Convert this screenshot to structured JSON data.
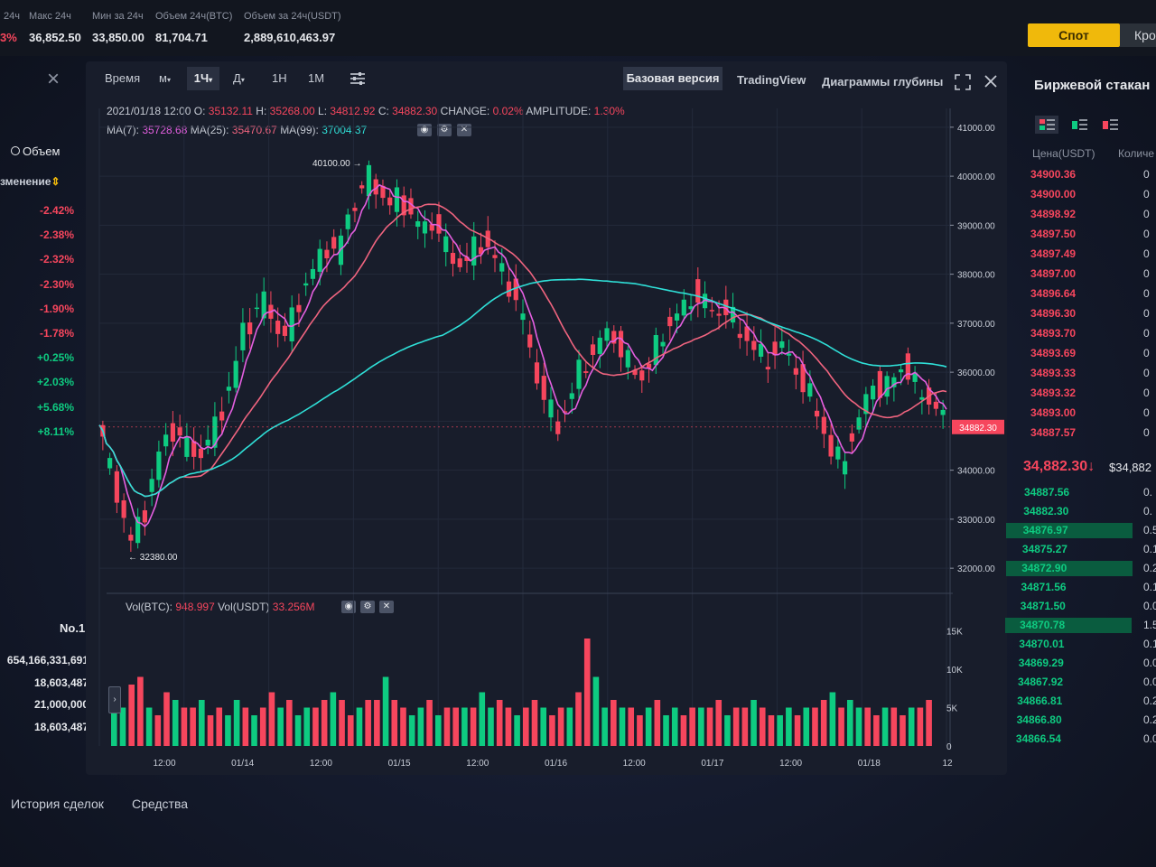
{
  "top_stats": {
    "change_partial": "3%",
    "label_change_partial": "24ч",
    "high_label": "Макс 24ч",
    "high_value": "36,852.50",
    "low_label": "Мин за 24ч",
    "low_value": "33,850.00",
    "vol_btc_label": "Объем 24ч(BTC)",
    "vol_btc_value": "81,704.71",
    "vol_usdt_label": "Объем за 24ч(USDT)",
    "vol_usdt_value": "2,889,610,463.97",
    "spot_button": "Спот",
    "cross_button": "Кро"
  },
  "left_panel": {
    "close_icon": "×",
    "volume_radio": "Объем",
    "change_header": "зменение",
    "changes": [
      {
        "value": "-2.42%",
        "sign": "neg"
      },
      {
        "value": "-2.38%",
        "sign": "neg"
      },
      {
        "value": "-2.32%",
        "sign": "neg"
      },
      {
        "value": "-2.30%",
        "sign": "neg"
      },
      {
        "value": "-1.90%",
        "sign": "neg"
      },
      {
        "value": "-1.78%",
        "sign": "neg"
      },
      {
        "value": "+0.25%",
        "sign": "pos"
      },
      {
        "value": "+2.03%",
        "sign": "pos"
      },
      {
        "value": "+5.68%",
        "sign": "pos"
      },
      {
        "value": "+8.11%",
        "sign": "pos"
      }
    ],
    "rank": "No.1",
    "stats": [
      "654,166,331,691",
      "18,603,487",
      "21,000,000",
      "18,603,487"
    ]
  },
  "toolbar": {
    "time": "Время",
    "minutes": "м",
    "hour": "1Ч",
    "day": "Д",
    "week": "1Н",
    "month": "1М",
    "basic_view": "Базовая версия",
    "tradingview": "TradingView",
    "depth_chart": "Диаграммы глубины"
  },
  "ohlc": {
    "datetime": "2021/01/18 12:00",
    "o_label": "O:",
    "o": "35132.11",
    "h_label": "H:",
    "h": "35268.00",
    "l_label": "L:",
    "l": "34812.92",
    "c_label": "C:",
    "c": "34882.30",
    "change_label": "CHANGE:",
    "change": "0.02%",
    "amp_label": "AMPLITUDE:",
    "amp": "1.30%",
    "ma7_label": "MA(7):",
    "ma7": "35728.68",
    "ma25_label": "MA(25):",
    "ma25": "35470.67",
    "ma99_label": "MA(99):",
    "ma99": "37004.37",
    "vol_btc_label": "Vol(BTC):",
    "vol_btc": "948.997",
    "vol_usdt_label": "Vol(USDT)",
    "vol_usdt": "33.256M"
  },
  "chart_data": {
    "type": "candlestick",
    "price_ticks": [
      "41000.00",
      "40000.00",
      "39000.00",
      "38000.00",
      "37000.00",
      "36000.00",
      "34000.00",
      "33000.00",
      "32000.00"
    ],
    "volume_ticks": [
      "15K",
      "10K",
      "5K",
      "0"
    ],
    "x_ticks": [
      "12:00",
      "01/14",
      "12:00",
      "01/15",
      "12:00",
      "01/16",
      "12:00",
      "01/17",
      "12:00",
      "01/18",
      "12"
    ],
    "annotations": {
      "high": "40100.00",
      "low": "32380.00"
    },
    "current_price_tag": "34882.30",
    "ylim": [
      31800,
      41200
    ],
    "close_points": [
      [
        0,
        34800
      ],
      [
        3,
        34100
      ],
      [
        6,
        33300
      ],
      [
        8,
        32700
      ],
      [
        9,
        32500
      ],
      [
        11,
        32900
      ],
      [
        14,
        33400
      ],
      [
        17,
        34300
      ],
      [
        20,
        34900
      ],
      [
        23,
        34600
      ],
      [
        26,
        34500
      ],
      [
        29,
        34300
      ],
      [
        32,
        34700
      ],
      [
        35,
        35300
      ],
      [
        38,
        35800
      ],
      [
        41,
        36900
      ],
      [
        44,
        37100
      ],
      [
        47,
        37500
      ],
      [
        50,
        37000
      ],
      [
        53,
        36700
      ],
      [
        56,
        37300
      ],
      [
        59,
        37800
      ],
      [
        62,
        38200
      ],
      [
        65,
        38600
      ],
      [
        68,
        38400
      ],
      [
        71,
        39200
      ],
      [
        74,
        39600
      ],
      [
        77,
        40000
      ],
      [
        80,
        39700
      ],
      [
        83,
        39400
      ],
      [
        86,
        39600
      ],
      [
        89,
        39200
      ],
      [
        92,
        38900
      ],
      [
        95,
        39100
      ],
      [
        98,
        38700
      ],
      [
        101,
        38300
      ],
      [
        104,
        38200
      ],
      [
        107,
        38500
      ],
      [
        110,
        38700
      ],
      [
        113,
        38300
      ],
      [
        116,
        37900
      ],
      [
        119,
        37500
      ],
      [
        122,
        36800
      ],
      [
        125,
        35900
      ],
      [
        128,
        35300
      ],
      [
        131,
        34900
      ],
      [
        134,
        35400
      ],
      [
        137,
        36000
      ],
      [
        140,
        36300
      ],
      [
        143,
        36600
      ],
      [
        146,
        36900
      ],
      [
        149,
        36400
      ],
      [
        152,
        36100
      ],
      [
        155,
        35900
      ],
      [
        158,
        36300
      ],
      [
        161,
        36800
      ],
      [
        164,
        37100
      ],
      [
        167,
        37300
      ],
      [
        170,
        37600
      ],
      [
        173,
        37400
      ],
      [
        176,
        37200
      ],
      [
        179,
        37300
      ],
      [
        182,
        36900
      ],
      [
        185,
        36700
      ],
      [
        188,
        36400
      ],
      [
        191,
        36200
      ],
      [
        194,
        36600
      ],
      [
        197,
        36300
      ],
      [
        200,
        35900
      ],
      [
        203,
        35500
      ],
      [
        206,
        35000
      ],
      [
        209,
        34400
      ],
      [
        212,
        34100
      ],
      [
        215,
        34700
      ],
      [
        218,
        35200
      ],
      [
        221,
        35800
      ],
      [
        224,
        35600
      ],
      [
        227,
        35900
      ],
      [
        230,
        36200
      ],
      [
        233,
        35700
      ],
      [
        236,
        35500
      ],
      [
        239,
        35300
      ],
      [
        242,
        34880
      ]
    ],
    "volume_values": [
      6,
      5,
      8,
      9,
      5,
      4,
      7,
      6,
      5,
      5,
      6,
      4,
      5,
      4,
      6,
      5,
      4,
      5,
      7,
      5,
      6,
      4,
      5,
      5,
      6,
      7,
      6,
      4,
      5,
      6,
      6,
      9,
      6,
      5,
      4,
      5,
      6,
      4,
      5,
      5,
      5,
      5,
      7,
      5,
      6,
      5,
      4,
      5,
      6,
      5,
      4,
      5,
      5,
      7,
      14,
      9,
      5,
      6,
      5,
      5,
      4,
      5,
      6,
      4,
      5,
      4,
      5,
      5,
      5,
      6,
      4,
      5,
      5,
      6,
      5,
      4,
      4,
      5,
      4,
      5,
      5,
      6,
      7,
      5,
      6,
      5,
      5,
      4,
      5,
      5,
      4,
      5,
      5,
      6
    ]
  },
  "order_book": {
    "title": "Биржевой стакан",
    "price_header": "Цена(USDT)",
    "qty_header": "Количе",
    "asks": [
      "34900.36",
      "34900.00",
      "34898.92",
      "34897.50",
      "34897.49",
      "34897.00",
      "34896.64",
      "34896.30",
      "34893.70",
      "34893.69",
      "34893.33",
      "34893.32",
      "34893.00",
      "34887.57"
    ],
    "last_price": "34,882.30",
    "last_price_usd": "$34,882",
    "bids": [
      "34887.56",
      "34882.30",
      "34876.97",
      "34875.27",
      "34872.90",
      "34871.56",
      "34871.50",
      "34870.78",
      "34870.01",
      "34869.29",
      "34867.92",
      "34866.81",
      "34866.80",
      "34866.54"
    ],
    "qty_cut": [
      "0.",
      "0.",
      "0.5",
      "0.1",
      "0.2",
      "0.1",
      "0.0",
      "1.5",
      "0.1",
      "0.0",
      "0.0",
      "0.2",
      "0.2",
      "0.0"
    ]
  },
  "bottom_tabs": {
    "trade_history": "История сделок",
    "funds": "Средства"
  },
  "colors": {
    "up": "#0ecb81",
    "down": "#f6465d",
    "ma7": "#e45fe0",
    "ma25": "#f0647f",
    "ma99": "#2fe0d8",
    "accent": "#f0b90b"
  }
}
